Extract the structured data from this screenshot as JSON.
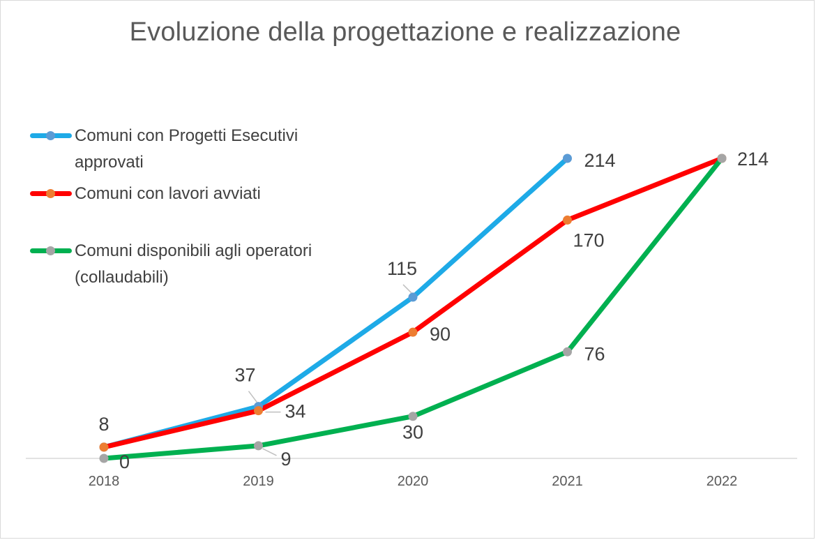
{
  "chart_data": {
    "type": "line",
    "title": "Evoluzione della progettazione e realizzazione",
    "categories": [
      "2018",
      "2019",
      "2020",
      "2021",
      "2022"
    ],
    "xlabel": "",
    "ylabel": "",
    "ylim": [
      0,
      214
    ],
    "grid": false,
    "legend_position": "top-left",
    "series": [
      {
        "name": "Comuni con Progetti Esecutivi approvati",
        "color": "#1eaae7",
        "marker_color": "#5b9bd5",
        "values": [
          8,
          37,
          115,
          214,
          null
        ],
        "labels": [
          "",
          "37",
          "115",
          "214",
          ""
        ]
      },
      {
        "name": "Comuni con lavori avviati",
        "color": "#ff0000",
        "marker_color": "#ed7d31",
        "values": [
          8,
          34,
          90,
          170,
          214
        ],
        "labels": [
          "8",
          "34",
          "90",
          "170",
          ""
        ]
      },
      {
        "name": "Comuni disponibili agli operatori (collaudabili)",
        "color": "#00b050",
        "marker_color": "#a5a5a5",
        "values": [
          0,
          9,
          30,
          76,
          214
        ],
        "labels": [
          "0",
          "9",
          "30",
          "76",
          "214"
        ]
      }
    ]
  }
}
